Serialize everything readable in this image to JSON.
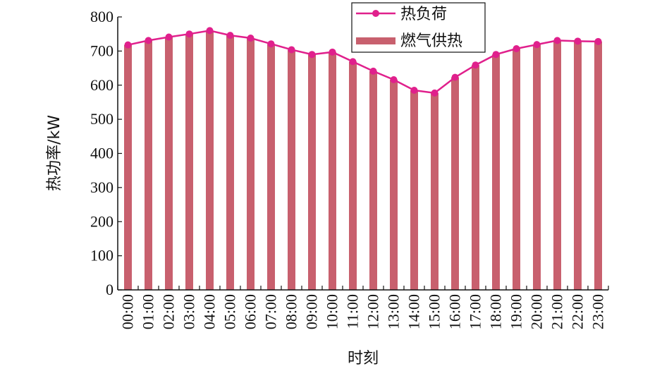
{
  "chart_data": {
    "type": "bar",
    "title": "",
    "xlabel": "时刻",
    "ylabel": "热功率/kW",
    "ylim": [
      0,
      800
    ],
    "yticks": [
      0,
      100,
      200,
      300,
      400,
      500,
      600,
      700,
      800
    ],
    "grid": false,
    "legend_position": "top-right",
    "categories": [
      "00:00",
      "01:00",
      "02:00",
      "03:00",
      "04:00",
      "05:00",
      "06:00",
      "07:00",
      "08:00",
      "09:00",
      "10:00",
      "11:00",
      "12:00",
      "13:00",
      "14:00",
      "15:00",
      "16:00",
      "17:00",
      "18:00",
      "19:00",
      "20:00",
      "21:00",
      "22:00",
      "23:00"
    ],
    "series": [
      {
        "name": "热负荷",
        "kind": "line",
        "color": "#e0208c",
        "values": [
          718,
          731,
          741,
          750,
          760,
          746,
          738,
          721,
          704,
          690,
          697,
          669,
          641,
          616,
          585,
          577,
          623,
          659,
          690,
          707,
          719,
          731,
          729,
          728
        ]
      },
      {
        "name": "燃气供热",
        "kind": "bar",
        "color": "#c8606e",
        "values": [
          718,
          731,
          741,
          750,
          760,
          746,
          738,
          721,
          704,
          690,
          697,
          669,
          641,
          616,
          585,
          577,
          623,
          659,
          690,
          707,
          719,
          731,
          729,
          728
        ]
      }
    ]
  }
}
